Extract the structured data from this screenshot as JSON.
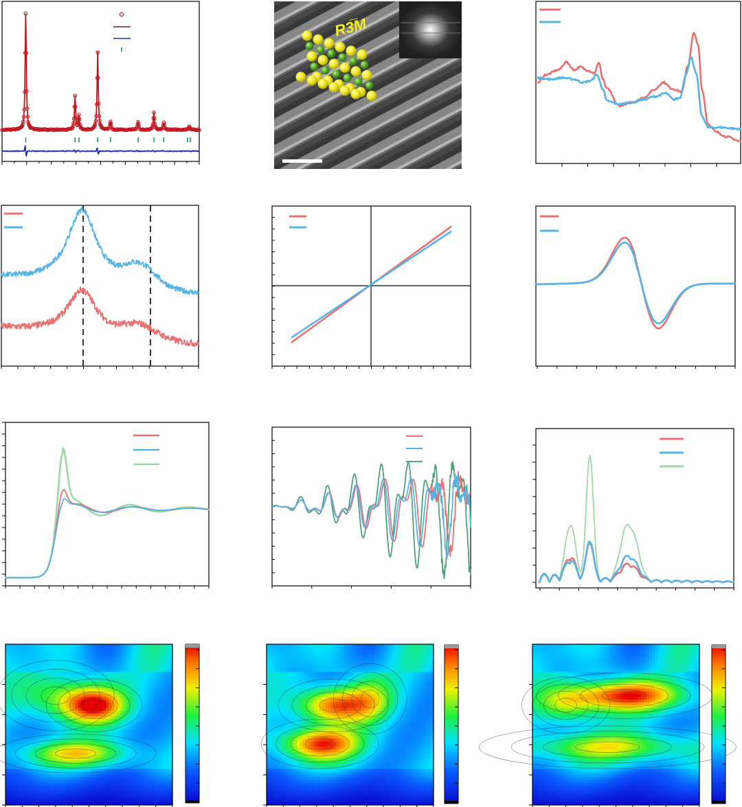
{
  "colors": {
    "red": "#e87070",
    "blue": "#55b4e6",
    "green_light": "#9fd6a8",
    "green_dark": "#4ea07a",
    "xrd_obs": "#c0141e",
    "xrd_calc": "#6a1b3a",
    "xrd_diff": "#1f2fb4",
    "xrd_bragg": "#1a9a56",
    "atom_yellow": "#f2ea2a",
    "atom_green": "#57a92a",
    "tem_text": "#f5ee1c"
  },
  "tem": {
    "space_group_label": "R3̅M"
  },
  "chart_data": [
    {
      "id": "xrd_refinement",
      "type": "line",
      "legend_placement": "top-right",
      "series": [
        {
          "role": "observed",
          "marker": "open-circle"
        },
        {
          "role": "calculated"
        },
        {
          "role": "difference"
        },
        {
          "role": "bragg-positions",
          "marker": "vertical-tick"
        }
      ],
      "peaks": [
        {
          "x": 0.12,
          "height": 1.0
        },
        {
          "x": 0.37,
          "height": 0.29
        },
        {
          "x": 0.39,
          "height": 0.12
        },
        {
          "x": 0.485,
          "height": 0.67
        },
        {
          "x": 0.55,
          "height": 0.07
        },
        {
          "x": 0.69,
          "height": 0.07
        },
        {
          "x": 0.77,
          "height": 0.15
        },
        {
          "x": 0.82,
          "height": 0.06
        },
        {
          "x": 0.95,
          "height": 0.03
        }
      ],
      "bragg_positions": [
        0.12,
        0.37,
        0.39,
        0.485,
        0.55,
        0.69,
        0.77,
        0.82,
        0.94,
        0.955
      ]
    },
    {
      "id": "xanes_top_right",
      "type": "line",
      "legend_placement": "top-left",
      "series": [
        {
          "color": "red",
          "points": [
            [
              0,
              0.5
            ],
            [
              0.04,
              0.55
            ],
            [
              0.1,
              0.58
            ],
            [
              0.14,
              0.63
            ],
            [
              0.18,
              0.58
            ],
            [
              0.21,
              0.6
            ],
            [
              0.24,
              0.58
            ],
            [
              0.28,
              0.56
            ],
            [
              0.3,
              0.63
            ],
            [
              0.32,
              0.52
            ],
            [
              0.34,
              0.46
            ],
            [
              0.4,
              0.35
            ],
            [
              0.46,
              0.37
            ],
            [
              0.52,
              0.4
            ],
            [
              0.57,
              0.45
            ],
            [
              0.62,
              0.5
            ],
            [
              0.66,
              0.46
            ],
            [
              0.71,
              0.44
            ],
            [
              0.74,
              0.61
            ],
            [
              0.77,
              0.82
            ],
            [
              0.79,
              0.74
            ],
            [
              0.81,
              0.45
            ],
            [
              0.84,
              0.23
            ],
            [
              0.88,
              0.18
            ],
            [
              0.93,
              0.15
            ],
            [
              1,
              0.12
            ]
          ]
        },
        {
          "color": "blue",
          "points": [
            [
              0,
              0.53
            ],
            [
              0.06,
              0.52
            ],
            [
              0.12,
              0.53
            ],
            [
              0.18,
              0.52
            ],
            [
              0.22,
              0.5
            ],
            [
              0.26,
              0.51
            ],
            [
              0.29,
              0.55
            ],
            [
              0.32,
              0.46
            ],
            [
              0.34,
              0.38
            ],
            [
              0.4,
              0.36
            ],
            [
              0.46,
              0.37
            ],
            [
              0.52,
              0.39
            ],
            [
              0.58,
              0.41
            ],
            [
              0.63,
              0.43
            ],
            [
              0.67,
              0.39
            ],
            [
              0.7,
              0.4
            ],
            [
              0.73,
              0.55
            ],
            [
              0.755,
              0.66
            ],
            [
              0.78,
              0.56
            ],
            [
              0.81,
              0.28
            ],
            [
              0.84,
              0.21
            ],
            [
              0.9,
              0.21
            ],
            [
              1,
              0.2
            ]
          ]
        }
      ]
    },
    {
      "id": "raman_stack",
      "type": "line",
      "legend_placement": "top-left",
      "series": [
        {
          "color": "blue",
          "offset": 0.4,
          "peak_x": 0.41
        },
        {
          "color": "red",
          "offset": 0.0,
          "peak_x": 0.41
        }
      ]
    },
    {
      "id": "mh_linear",
      "type": "line",
      "legend_placement": "top-left",
      "series": [
        {
          "color": "red",
          "points": [
            [
              0.1,
              0.15
            ],
            [
              0.9,
              0.87
            ]
          ]
        },
        {
          "color": "blue",
          "points": [
            [
              0.1,
              0.18
            ],
            [
              0.9,
              0.84
            ]
          ]
        }
      ]
    },
    {
      "id": "epr_derivative",
      "type": "line",
      "legend_placement": "top-left",
      "series": [
        {
          "color": "red",
          "amplitude": 1.08
        },
        {
          "color": "blue",
          "amplitude": 0.96
        }
      ]
    },
    {
      "id": "xanes_edge",
      "type": "line",
      "legend_placement": "top-right",
      "series": [
        {
          "color": "red"
        },
        {
          "color": "blue"
        },
        {
          "color": "green_light"
        }
      ]
    },
    {
      "id": "exafs_k",
      "type": "line",
      "legend_placement": "top-right",
      "series": [
        {
          "color": "red"
        },
        {
          "color": "blue"
        },
        {
          "color": "green_dark"
        }
      ]
    },
    {
      "id": "exafs_r",
      "type": "line",
      "legend_placement": "top-right",
      "series": [
        {
          "color": "red"
        },
        {
          "color": "blue"
        },
        {
          "color": "green_light"
        }
      ]
    },
    {
      "id": "wavelet_1",
      "type": "heatmap",
      "blobs": [
        {
          "x": 0.53,
          "y": 0.38,
          "sx": 0.13,
          "sy": 0.075,
          "v": 1.0
        },
        {
          "x": 0.42,
          "y": 0.68,
          "sx": 0.22,
          "sy": 0.055,
          "v": 0.62
        },
        {
          "x": 0.3,
          "y": 0.32,
          "sx": 0.16,
          "sy": 0.1,
          "v": 0.45
        }
      ]
    },
    {
      "id": "wavelet_2",
      "type": "heatmap",
      "blobs": [
        {
          "x": 0.4,
          "y": 0.38,
          "sx": 0.15,
          "sy": 0.075,
          "v": 0.95
        },
        {
          "x": 0.32,
          "y": 0.62,
          "sx": 0.16,
          "sy": 0.07,
          "v": 1.0
        },
        {
          "x": 0.62,
          "y": 0.34,
          "sx": 0.1,
          "sy": 0.1,
          "v": 0.4
        }
      ]
    },
    {
      "id": "wavelet_3",
      "type": "heatmap",
      "blobs": [
        {
          "x": 0.55,
          "y": 0.32,
          "sx": 0.24,
          "sy": 0.065,
          "v": 1.0
        },
        {
          "x": 0.45,
          "y": 0.64,
          "sx": 0.35,
          "sy": 0.06,
          "v": 0.55
        },
        {
          "x": 0.2,
          "y": 0.38,
          "sx": 0.12,
          "sy": 0.08,
          "v": 0.5
        }
      ]
    }
  ]
}
